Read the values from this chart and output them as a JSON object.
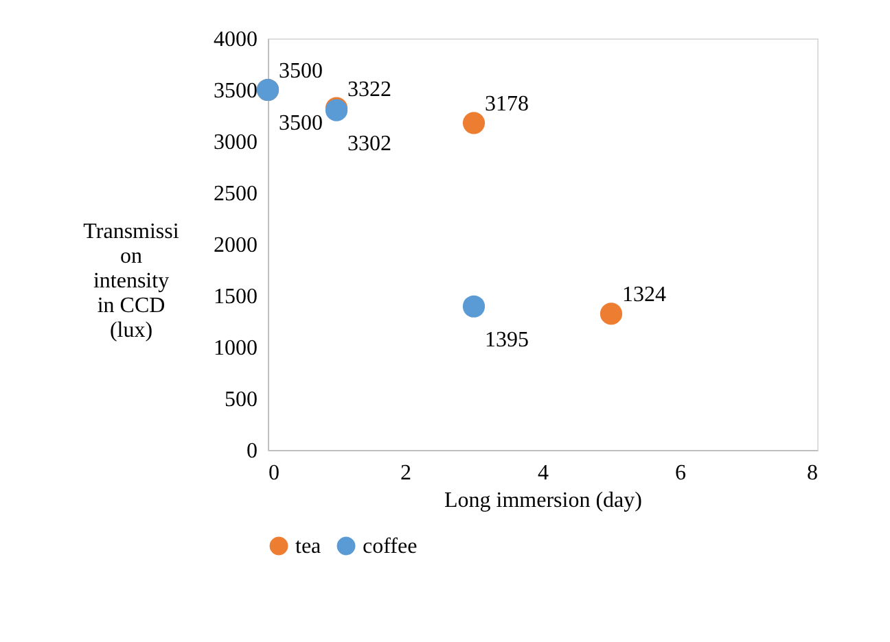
{
  "chart_data": {
    "type": "scatter",
    "xlabel": "Long immersion (day)",
    "ylabel": "Transmission intensity in CCD (lux)",
    "series": [
      {
        "name": "tea",
        "color": "#ed7d31",
        "x": [
          0,
          1,
          3,
          5
        ],
        "values": [
          3500,
          3322,
          3178,
          1324
        ]
      },
      {
        "name": "coffee",
        "color": "#5b9bd5",
        "x": [
          0,
          1,
          3
        ],
        "values": [
          3500,
          3302,
          1395
        ]
      }
    ],
    "xlim": [
      0,
      8
    ],
    "xticks": [
      0,
      2,
      4,
      6,
      8
    ],
    "ylim": [
      0,
      4000
    ],
    "yticks": [
      0,
      500,
      1000,
      1500,
      2000,
      2500,
      3000,
      3500,
      4000
    ],
    "data_labels": true,
    "legend": "bottom",
    "grid": false,
    "marker": "circle"
  }
}
